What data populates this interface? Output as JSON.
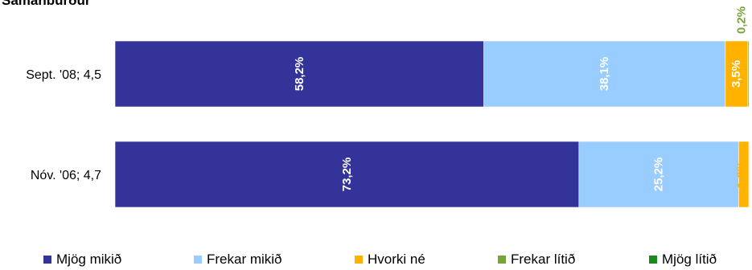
{
  "chart_data": {
    "type": "bar",
    "orientation": "horizontal",
    "stacked": true,
    "title": "Samanburður",
    "categories": [
      "Sept. '08; 4,5",
      "Nóv. '06; 4,7"
    ],
    "series": [
      {
        "name": "Mjög mikið",
        "color": "#333399",
        "values": [
          58.2,
          73.2
        ],
        "labels": [
          "58,2%",
          "73,2%"
        ]
      },
      {
        "name": "Frekar mikið",
        "color": "#99ccff",
        "values": [
          38.1,
          25.2
        ],
        "labels": [
          "38,1%",
          "25,2%"
        ]
      },
      {
        "name": "Hvorki né",
        "color": "#ffb300",
        "values": [
          3.5,
          1.6
        ],
        "labels": [
          "3,5%",
          "1,6%"
        ]
      },
      {
        "name": "Frekar lítið",
        "color": "#77a438",
        "values": [
          0.2,
          0
        ],
        "labels": [
          "0,2%",
          ""
        ]
      },
      {
        "name": "Mjög lítið",
        "color": "#1a8a1a",
        "values": [
          0,
          0
        ],
        "labels": [
          "",
          ""
        ]
      }
    ],
    "xlim": [
      0,
      100
    ],
    "grid": false,
    "legend_position": "bottom"
  }
}
